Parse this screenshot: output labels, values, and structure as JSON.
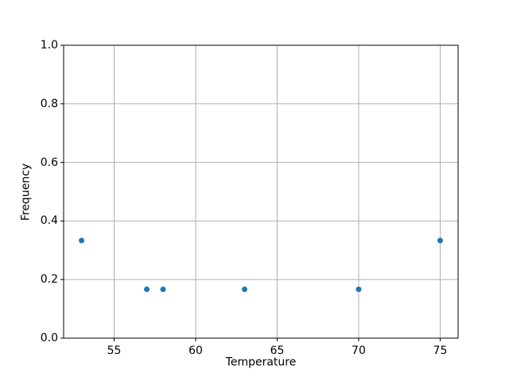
{
  "figure": {
    "background_color": "#ffffff",
    "text_color": "#000000"
  },
  "chart_data": {
    "type": "scatter",
    "title": "",
    "xlabel": "Temperature",
    "ylabel": "Frequency",
    "x": [
      53,
      57,
      58,
      63,
      70,
      75
    ],
    "y": [
      0.3333,
      0.1667,
      0.1667,
      0.1667,
      0.1667,
      0.3333
    ],
    "xlim": [
      51.9,
      76.1
    ],
    "ylim": [
      0.0,
      1.0
    ],
    "xticks": [
      55,
      60,
      65,
      70,
      75
    ],
    "yticks": [
      0.0,
      0.2,
      0.4,
      0.6,
      0.8,
      1.0
    ],
    "xtick_labels": [
      "55",
      "60",
      "65",
      "70",
      "75"
    ],
    "ytick_labels": [
      "0.0",
      "0.2",
      "0.4",
      "0.6",
      "0.8",
      "1.0"
    ],
    "grid": true,
    "legend": null,
    "marker_color": "#1f77b4",
    "grid_color": "#b0b0b0",
    "axis_color": "#000000"
  }
}
